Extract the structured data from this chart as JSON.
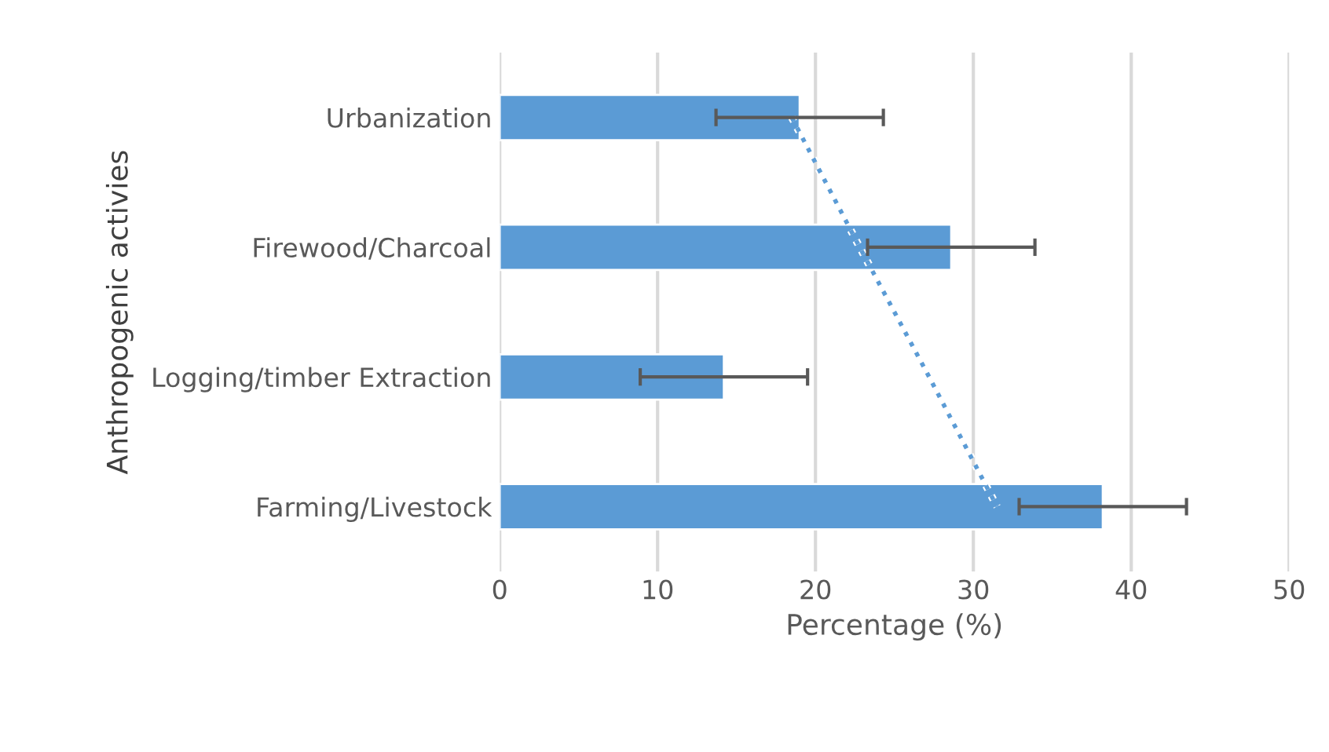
{
  "chart_data": {
    "type": "bar",
    "orientation": "horizontal",
    "xlabel": "Percentage (%)",
    "ylabel": "Anthropogenic activies",
    "categories": [
      "Urbanization",
      "Firewood/Charcoal",
      "Logging/timber Extraction",
      "Farming/Livestock"
    ],
    "series": [
      {
        "type": "bar",
        "color": "#5b9bd5",
        "values": [
          19.0,
          28.6,
          14.2,
          38.2
        ],
        "errors": [
          5.3,
          5.3,
          5.3,
          5.3
        ]
      },
      {
        "type": "line",
        "color": "#5b9bd5",
        "line_style": "dotted",
        "marker": "none",
        "values": [
          18.5,
          22.8,
          27.2,
          31.5
        ]
      }
    ],
    "xlim": [
      0,
      50
    ],
    "xticks": [
      0,
      10,
      20,
      30,
      40,
      50
    ],
    "grid": "x",
    "legend": false
  }
}
